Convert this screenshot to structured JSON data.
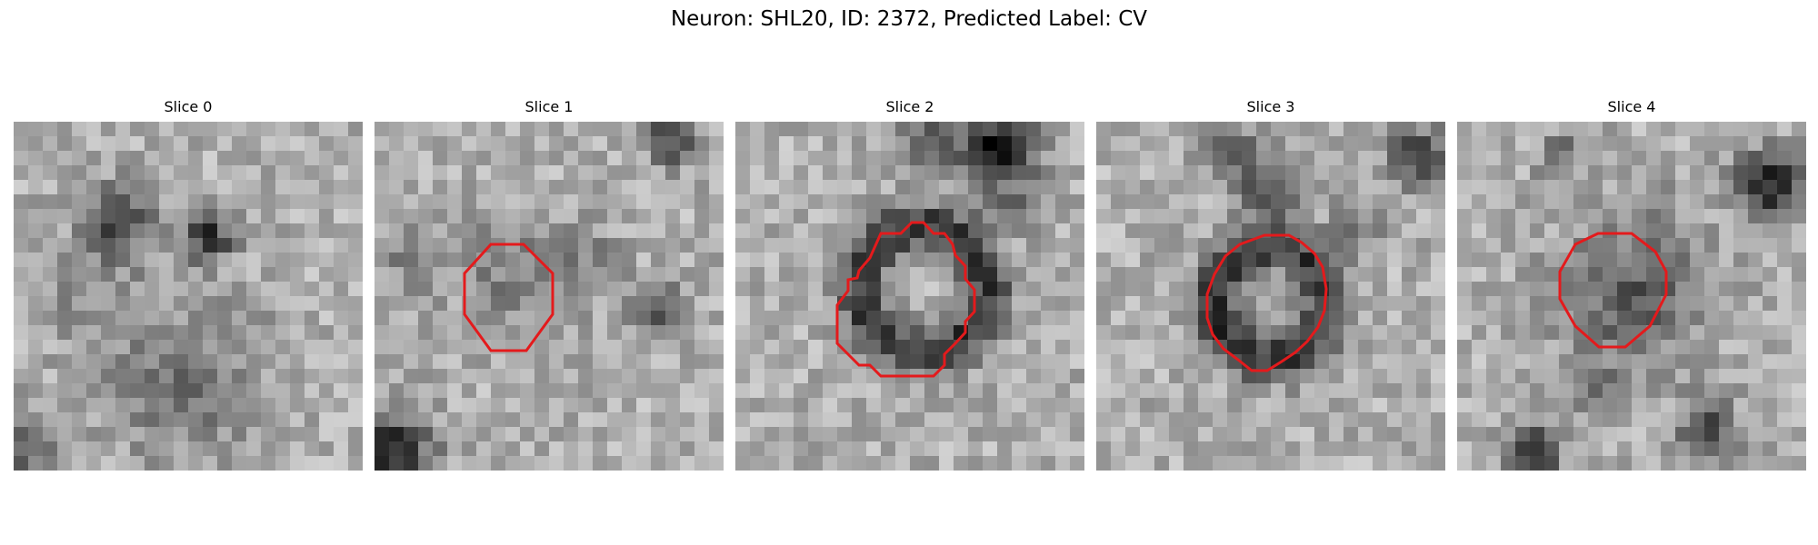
{
  "figure": {
    "title": "Neuron: SHL20, ID: 2372, Predicted Label: CV"
  },
  "colors": {
    "contour": "#e41a1c",
    "background": "#ffffff"
  },
  "panels": [
    {
      "title": "Slice 0",
      "has_contour": false,
      "seed": 11,
      "blobs": [
        [
          0.3,
          0.28,
          0.07,
          -110
        ],
        [
          0.56,
          0.33,
          0.05,
          -120
        ],
        [
          0.5,
          0.75,
          0.16,
          -55
        ],
        [
          0.22,
          0.48,
          0.1,
          -35
        ],
        [
          0.05,
          0.95,
          0.08,
          -70
        ]
      ]
    },
    {
      "title": "Slice 1",
      "has_contour": true,
      "seed": 23,
      "blobs": [
        [
          0.4,
          0.44,
          0.12,
          -45
        ],
        [
          0.1,
          0.4,
          0.07,
          -40
        ],
        [
          0.8,
          0.53,
          0.05,
          -90
        ],
        [
          0.05,
          0.95,
          0.08,
          -140
        ],
        [
          0.85,
          0.05,
          0.05,
          -110
        ],
        [
          0.62,
          0.38,
          0.06,
          -35
        ]
      ]
    },
    {
      "title": "Slice 2",
      "has_contour": true,
      "seed": 37,
      "ring": [
        0.54,
        0.48,
        0.18,
        0.05,
        -120
      ],
      "blobs": [
        [
          0.75,
          0.08,
          0.08,
          -150
        ],
        [
          0.55,
          0.05,
          0.06,
          -70
        ],
        [
          0.82,
          0.25,
          0.04,
          -70
        ]
      ]
    },
    {
      "title": "Slice 3",
      "has_contour": true,
      "seed": 53,
      "ring": [
        0.5,
        0.52,
        0.16,
        0.05,
        -120
      ],
      "blobs": [
        [
          0.5,
          0.2,
          0.06,
          -110
        ],
        [
          0.38,
          0.08,
          0.05,
          -90
        ],
        [
          0.92,
          0.1,
          0.06,
          -110
        ],
        [
          0.75,
          0.3,
          0.05,
          -60
        ]
      ]
    },
    {
      "title": "Slice 4",
      "has_contour": true,
      "seed": 71,
      "blobs": [
        [
          0.5,
          0.5,
          0.14,
          -85
        ],
        [
          0.42,
          0.78,
          0.05,
          -60
        ],
        [
          0.22,
          0.95,
          0.05,
          -140
        ],
        [
          0.72,
          0.88,
          0.06,
          -100
        ],
        [
          0.9,
          0.18,
          0.07,
          -140
        ],
        [
          0.3,
          0.1,
          0.05,
          -60
        ],
        [
          0.58,
          0.22,
          0.04,
          -50
        ]
      ]
    }
  ]
}
